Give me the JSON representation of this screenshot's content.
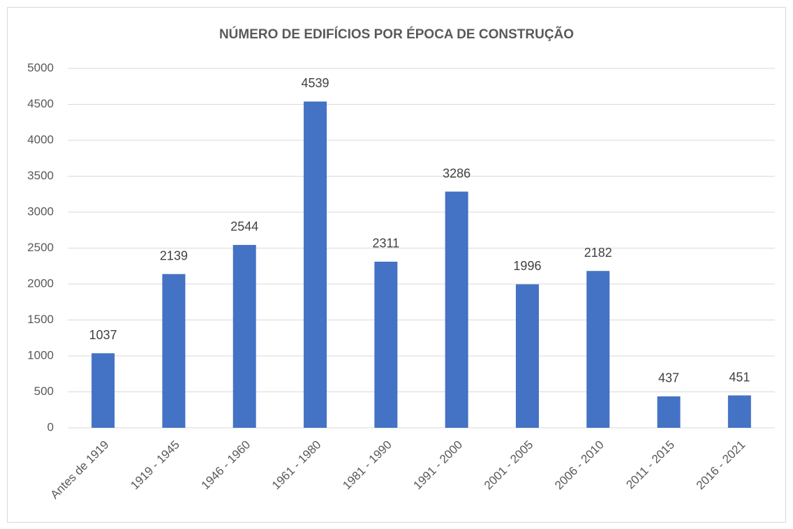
{
  "chart_data": {
    "type": "bar",
    "title": "NÚMERO DE EDIFÍCIOS POR ÉPOCA DE CONSTRUÇÃO",
    "categories": [
      "Antes de 1919",
      "1919 - 1945",
      "1946 - 1960",
      "1961 - 1980",
      "1981 - 1990",
      "1991 - 2000",
      "2001 - 2005",
      "2006 - 2010",
      "2011 - 2015",
      "2016 - 2021"
    ],
    "values": [
      1037,
      2139,
      2544,
      4539,
      2311,
      3286,
      1996,
      2182,
      437,
      451
    ],
    "color": "#4472c4",
    "ylim": [
      0,
      5000
    ],
    "yticks": [
      0,
      500,
      1000,
      1500,
      2000,
      2500,
      3000,
      3500,
      4000,
      4500,
      5000
    ],
    "grid": true,
    "data_labels": true
  }
}
